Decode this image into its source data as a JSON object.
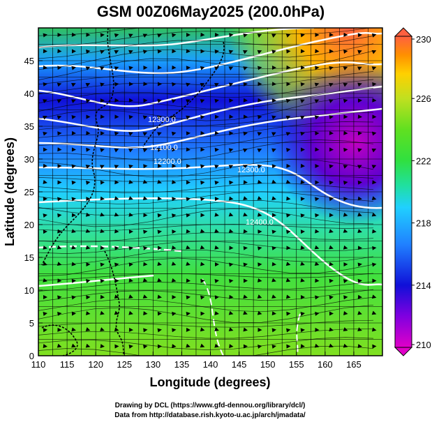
{
  "title": "GSM 00Z06May2025 (200.0hPa)",
  "xlabel": "Longitude (degrees)",
  "ylabel": "Latitude  (degrees)",
  "x_ticks": [
    "110",
    "115",
    "120",
    "125",
    "130",
    "135",
    "140",
    "145",
    "150",
    "155",
    "160",
    "165"
  ],
  "y_ticks": [
    "0",
    "5",
    "10",
    "15",
    "20",
    "25",
    "30",
    "35",
    "40",
    "45"
  ],
  "colorbar": {
    "ticks": [
      "210",
      "214",
      "218",
      "222",
      "226",
      "230"
    ],
    "colors": [
      "#e000c8",
      "#8000e0",
      "#1010d8",
      "#2080ff",
      "#20d0ff",
      "#20e0a0",
      "#30e040",
      "#60e020",
      "#a0e020",
      "#e0e000",
      "#ffb000",
      "#ff6040"
    ]
  },
  "contour_labels": [
    "12300.0",
    "12100.0",
    "12200.0",
    "12300.0",
    "12400.0"
  ],
  "credits": {
    "line1": "Drawing by DCL (https://www.gfd-dennou.org/library/dcl/)",
    "line2": "Data from http://database.rish.kyoto-u.ac.jp/arch/jmadata/"
  }
}
